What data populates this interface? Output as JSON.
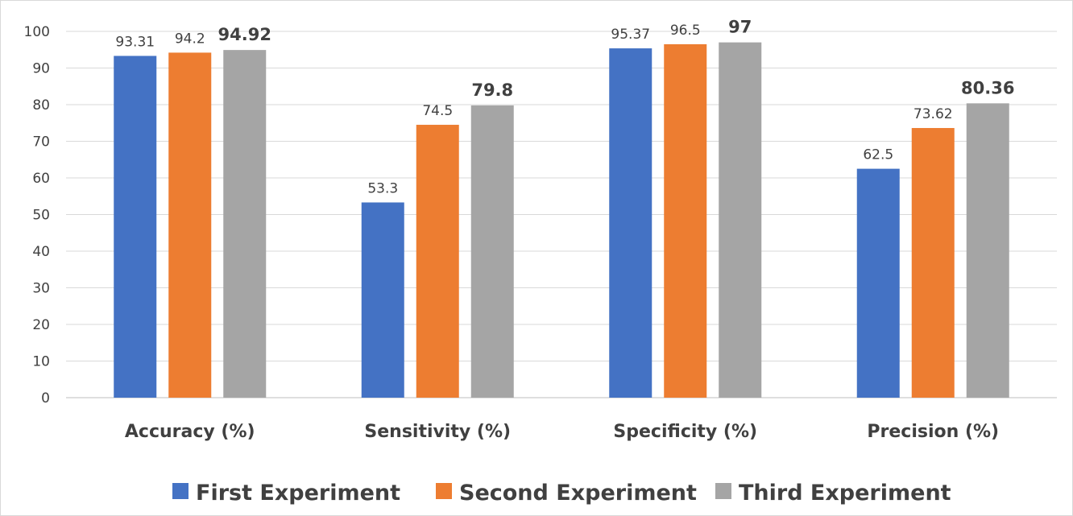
{
  "chart_data": {
    "type": "bar",
    "categories": [
      "Accuracy (%)",
      "Sensitivity (%)",
      "Specificity (%)",
      "Precision (%)"
    ],
    "series": [
      {
        "name": "First Experiment",
        "values": [
          93.31,
          53.3,
          95.37,
          62.5
        ],
        "labels": [
          "93.31",
          "53.3",
          "95.37",
          "62.5"
        ],
        "color": "#4472C4",
        "bold_labels": false
      },
      {
        "name": "Second Experiment",
        "values": [
          94.2,
          74.5,
          96.5,
          73.62
        ],
        "labels": [
          "94.2",
          "74.5",
          "96.5",
          "73.62"
        ],
        "color": "#ED7D31",
        "bold_labels": false
      },
      {
        "name": "Third Experiment",
        "values": [
          94.92,
          79.8,
          97,
          80.36
        ],
        "labels": [
          "94.92",
          "79.8",
          "97",
          "80.36"
        ],
        "color": "#A5A5A5",
        "bold_labels": true
      }
    ],
    "yticks": [
      "0",
      "10",
      "20",
      "30",
      "40",
      "50",
      "60",
      "70",
      "80",
      "90",
      "100"
    ],
    "ylim": [
      0,
      100
    ],
    "grid": true,
    "legend_position": "bottom",
    "title": "",
    "xlabel": "",
    "ylabel": ""
  }
}
